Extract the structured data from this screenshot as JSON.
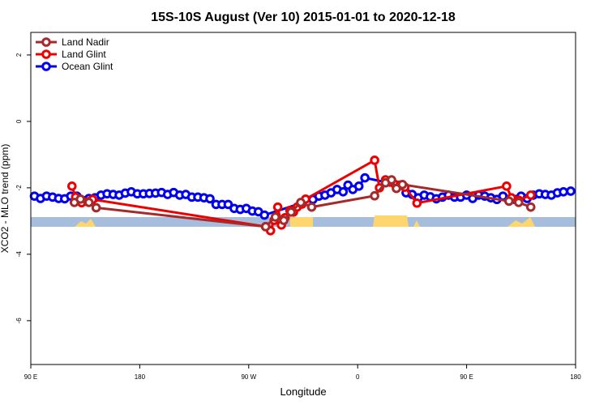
{
  "chart_data": {
    "type": "line",
    "title": "15S-10S August (Ver 10)   2015-01-01 to 2020-12-18",
    "x_label": "Longitude",
    "y_label": "XCO2 - MLO trend (ppm)",
    "xlim": [
      90,
      540
    ],
    "ylim": [
      -7.32,
      2.68
    ],
    "xticks": [
      {
        "value": 90,
        "label": "90 E"
      },
      180,
      {
        "value": 270,
        "label": "90 W"
      },
      {
        "value": 360,
        "label": "0"
      },
      {
        "value": 450,
        "label": "90 E"
      },
      {
        "value": 540,
        "label": "180"
      }
    ],
    "yticks": [
      2,
      0,
      -2,
      -4,
      -6
    ],
    "legend": "top-left",
    "series": [
      {
        "name": "Land Nadir",
        "color": "#a52a2a",
        "x": [
          126,
          131,
          138,
          144,
          284,
          292,
          299,
          305,
          313,
          322,
          374,
          383,
          388,
          392,
          397,
          485,
          493,
          503
        ],
        "values": [
          -2.44,
          -2.34,
          -2.44,
          -2.6,
          -3.17,
          -2.88,
          -2.98,
          -2.73,
          -2.44,
          -2.58,
          -2.24,
          -1.85,
          -1.76,
          -2.02,
          -1.9,
          -2.4,
          -2.44,
          -2.58
        ]
      },
      {
        "name": "Land Glint",
        "color": "#ee0000",
        "x": [
          124,
          127,
          132,
          137,
          141,
          284,
          288,
          291,
          294,
          297,
          300,
          304,
          307,
          310,
          314,
          317,
          374,
          378,
          383,
          387,
          391,
          395,
          399,
          409,
          483,
          487,
          493,
          503
        ],
        "values": [
          -1.95,
          -2.28,
          -2.45,
          -2.42,
          -2.35,
          -3.17,
          -3.29,
          -2.98,
          -2.58,
          -3.12,
          -2.9,
          -2.68,
          -2.73,
          -2.58,
          -2.49,
          -2.34,
          -1.17,
          -2.0,
          -1.76,
          -1.83,
          -1.9,
          -1.92,
          -1.98,
          -2.46,
          -1.95,
          -2.3,
          -2.37,
          -2.22
        ]
      },
      {
        "name": "Ocean Glint",
        "color": "#0000ee",
        "x": [
          93,
          98,
          103,
          108,
          113,
          118,
          123,
          128,
          133,
          138,
          143,
          148,
          153,
          158,
          163,
          168,
          173,
          178,
          183,
          188,
          193,
          198,
          203,
          208,
          213,
          218,
          223,
          228,
          233,
          238,
          243,
          248,
          253,
          258,
          263,
          268,
          273,
          278,
          283,
          323,
          328,
          333,
          338,
          343,
          348,
          352,
          356,
          361,
          366,
          395,
          400,
          405,
          410,
          415,
          420,
          425,
          430,
          435,
          440,
          445,
          450,
          455,
          460,
          465,
          470,
          475,
          480,
          485,
          490,
          495,
          500,
          505,
          510,
          515,
          520,
          525,
          530,
          536
        ],
        "values": [
          -2.25,
          -2.32,
          -2.25,
          -2.28,
          -2.32,
          -2.33,
          -2.25,
          -2.25,
          -2.38,
          -2.32,
          -2.3,
          -2.22,
          -2.18,
          -2.2,
          -2.22,
          -2.16,
          -2.12,
          -2.18,
          -2.18,
          -2.17,
          -2.16,
          -2.14,
          -2.2,
          -2.14,
          -2.22,
          -2.2,
          -2.28,
          -2.28,
          -2.3,
          -2.33,
          -2.5,
          -2.5,
          -2.5,
          -2.62,
          -2.65,
          -2.62,
          -2.7,
          -2.72,
          -2.82,
          -2.35,
          -2.25,
          -2.22,
          -2.15,
          -2.05,
          -2.12,
          -1.92,
          -2.05,
          -1.95,
          -1.7,
          -1.92,
          -2.15,
          -2.2,
          -2.3,
          -2.22,
          -2.27,
          -2.33,
          -2.28,
          -2.22,
          -2.28,
          -2.28,
          -2.22,
          -2.32,
          -2.22,
          -2.25,
          -2.3,
          -2.35,
          -2.25,
          -2.4,
          -2.35,
          -2.25,
          -2.32,
          -2.22,
          -2.18,
          -2.2,
          -2.22,
          -2.15,
          -2.12,
          -2.1
        ]
      }
    ]
  }
}
